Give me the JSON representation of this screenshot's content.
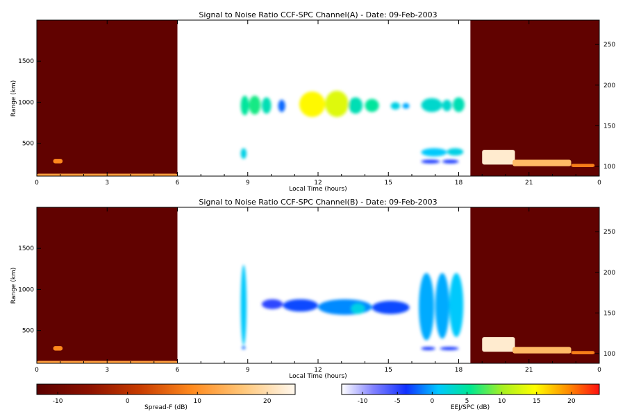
{
  "chart_data": [
    {
      "type": "heatmap",
      "title": "Signal to Noise Ratio CCF-SPC Channel(A) - Date: 09-Feb-2003",
      "xlabel": "Local Time (hours)",
      "ylabel": "Range (km)",
      "xlim": [
        0,
        24
      ],
      "ylim": [
        100,
        2000
      ],
      "x_ticks": [
        "0",
        "3",
        "6",
        "9",
        "12",
        "15",
        "18",
        "21",
        "0"
      ],
      "x_tick_values": [
        0,
        3,
        6,
        9,
        12,
        15,
        18,
        21,
        24
      ],
      "y_ticks": [
        "500",
        "1000",
        "1500"
      ],
      "y_tick_values": [
        500,
        1000,
        1500
      ],
      "y2_ticks": [
        "100",
        "150",
        "200",
        "250"
      ],
      "y2_tick_values": [
        100,
        150,
        200,
        250
      ],
      "y2lim": [
        88,
        280
      ],
      "grid": false,
      "spread_f_windows": [
        [
          0,
          6
        ],
        [
          18.5,
          24
        ]
      ],
      "spread_f_echoes": [
        {
          "t0": 0.0,
          "t1": 6.0,
          "r0": 100,
          "r1": 130,
          "level": 12
        },
        {
          "t0": 0.7,
          "t1": 1.1,
          "r0": 255,
          "r1": 310,
          "level": 9
        },
        {
          "t0": 19.0,
          "t1": 20.4,
          "r0": 240,
          "r1": 420,
          "level": 22
        },
        {
          "t0": 20.3,
          "t1": 22.8,
          "r0": 220,
          "r1": 300,
          "level": 15
        },
        {
          "t0": 22.8,
          "t1": 23.8,
          "r0": 210,
          "r1": 250,
          "level": 8
        }
      ],
      "echoes": [
        {
          "t0": 8.7,
          "t1": 9.05,
          "r0": 840,
          "r1": 1080,
          "level": 5
        },
        {
          "t0": 9.05,
          "t1": 9.55,
          "r0": 850,
          "r1": 1080,
          "level": 6
        },
        {
          "t0": 9.6,
          "t1": 10.0,
          "r0": 860,
          "r1": 1060,
          "level": 4
        },
        {
          "t0": 10.3,
          "t1": 10.6,
          "r0": 880,
          "r1": 1030,
          "level": -2
        },
        {
          "t0": 11.2,
          "t1": 12.3,
          "r0": 820,
          "r1": 1130,
          "level": 15
        },
        {
          "t0": 12.3,
          "t1": 13.3,
          "r0": 820,
          "r1": 1140,
          "level": 13
        },
        {
          "t0": 13.3,
          "t1": 13.9,
          "r0": 860,
          "r1": 1060,
          "level": 4
        },
        {
          "t0": 14.0,
          "t1": 14.6,
          "r0": 880,
          "r1": 1040,
          "level": 5
        },
        {
          "t0": 15.1,
          "t1": 15.5,
          "r0": 910,
          "r1": 1000,
          "level": 2
        },
        {
          "t0": 15.6,
          "t1": 15.9,
          "r0": 920,
          "r1": 990,
          "level": 0
        },
        {
          "t0": 16.4,
          "t1": 17.3,
          "r0": 880,
          "r1": 1050,
          "level": 3
        },
        {
          "t0": 17.3,
          "t1": 17.7,
          "r0": 890,
          "r1": 1030,
          "level": 3
        },
        {
          "t0": 17.75,
          "t1": 18.25,
          "r0": 880,
          "r1": 1060,
          "level": 4
        },
        {
          "t0": 8.7,
          "t1": 8.95,
          "r0": 310,
          "r1": 440,
          "level": 2
        },
        {
          "t0": 16.4,
          "t1": 17.5,
          "r0": 340,
          "r1": 440,
          "level": 1
        },
        {
          "t0": 17.5,
          "t1": 18.2,
          "r0": 350,
          "r1": 440,
          "level": 2
        },
        {
          "t0": 16.4,
          "t1": 17.2,
          "r0": 255,
          "r1": 300,
          "level": -4
        },
        {
          "t0": 17.3,
          "t1": 18.0,
          "r0": 255,
          "r1": 300,
          "level": -4
        }
      ]
    },
    {
      "type": "heatmap",
      "title": "Signal to Noise Ratio CCF-SPC Channel(B) - Date: 09-Feb-2003",
      "xlabel": "Local Time (hours)",
      "ylabel": "Range (km)",
      "xlim": [
        0,
        24
      ],
      "ylim": [
        100,
        2000
      ],
      "x_ticks": [
        "0",
        "3",
        "6",
        "9",
        "12",
        "15",
        "18",
        "21",
        "0"
      ],
      "x_tick_values": [
        0,
        3,
        6,
        9,
        12,
        15,
        18,
        21,
        24
      ],
      "y_ticks": [
        "500",
        "1000",
        "1500"
      ],
      "y_tick_values": [
        500,
        1000,
        1500
      ],
      "y2_ticks": [
        "100",
        "150",
        "200",
        "250"
      ],
      "y2_tick_values": [
        100,
        150,
        200,
        250
      ],
      "y2lim": [
        88,
        280
      ],
      "grid": false,
      "spread_f_windows": [
        [
          0,
          6
        ],
        [
          18.5,
          24
        ]
      ],
      "spread_f_echoes": [
        {
          "t0": 0.0,
          "t1": 6.0,
          "r0": 100,
          "r1": 130,
          "level": 12
        },
        {
          "t0": 0.7,
          "t1": 1.1,
          "r0": 255,
          "r1": 310,
          "level": 9
        },
        {
          "t0": 19.0,
          "t1": 20.4,
          "r0": 240,
          "r1": 420,
          "level": 22
        },
        {
          "t0": 20.3,
          "t1": 22.8,
          "r0": 220,
          "r1": 300,
          "level": 15
        },
        {
          "t0": 22.8,
          "t1": 23.8,
          "r0": 210,
          "r1": 250,
          "level": 8
        }
      ],
      "echoes": [
        {
          "t0": 8.7,
          "t1": 8.95,
          "r0": 320,
          "r1": 1300,
          "level": 1
        },
        {
          "t0": 8.75,
          "t1": 8.9,
          "r0": 270,
          "r1": 310,
          "level": -2
        },
        {
          "t0": 9.6,
          "t1": 10.5,
          "r0": 760,
          "r1": 880,
          "level": -5
        },
        {
          "t0": 10.5,
          "t1": 12.0,
          "r0": 730,
          "r1": 880,
          "level": -3
        },
        {
          "t0": 12.0,
          "t1": 14.3,
          "r0": 690,
          "r1": 880,
          "level": -1
        },
        {
          "t0": 13.4,
          "t1": 14.0,
          "r0": 700,
          "r1": 830,
          "level": 2
        },
        {
          "t0": 14.3,
          "t1": 15.9,
          "r0": 700,
          "r1": 860,
          "level": -3
        },
        {
          "t0": 16.3,
          "t1": 16.95,
          "r0": 380,
          "r1": 1200,
          "level": 0
        },
        {
          "t0": 17.0,
          "t1": 17.6,
          "r0": 400,
          "r1": 1200,
          "level": 0
        },
        {
          "t0": 17.6,
          "t1": 18.2,
          "r0": 420,
          "r1": 1200,
          "level": 1
        },
        {
          "t0": 16.4,
          "t1": 17.0,
          "r0": 260,
          "r1": 300,
          "level": -4
        },
        {
          "t0": 17.2,
          "t1": 18.0,
          "r0": 260,
          "r1": 300,
          "level": -4
        }
      ]
    }
  ],
  "colorbars": [
    {
      "label": "Spread-F (dB)",
      "range": [
        -13,
        24
      ],
      "ticks": [
        "-10",
        "0",
        "10",
        "20"
      ],
      "tick_values": [
        -10,
        0,
        10,
        20
      ],
      "colors": [
        "#5b0000",
        "#8b1000",
        "#c83c00",
        "#ff8a1e",
        "#ffc77a",
        "#fff8ee"
      ]
    },
    {
      "label": "EEJ/SPC (dB)",
      "range": [
        -13,
        24
      ],
      "ticks": [
        "-10",
        "-5",
        "0",
        "5",
        "10",
        "15",
        "20"
      ],
      "tick_values": [
        -10,
        -5,
        0,
        5,
        10,
        15,
        20
      ],
      "colors": [
        "#ffffff",
        "#8080ff",
        "#1030ff",
        "#00c8ff",
        "#00e890",
        "#a8f020",
        "#ffff00",
        "#ff9000",
        "#ff1010"
      ]
    }
  ]
}
